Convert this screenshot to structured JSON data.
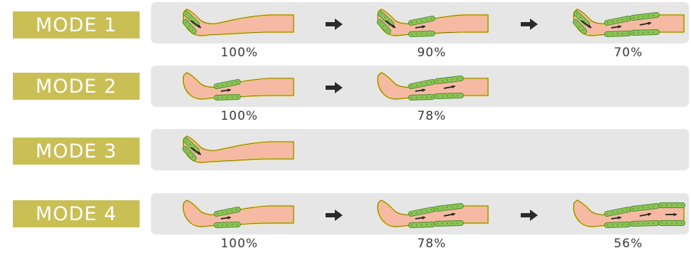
{
  "modes": [
    {
      "label": "MODE  1",
      "steps": [
        {
          "pressure": "100%",
          "active_zones": [
            "foot"
          ]
        },
        {
          "pressure": "90%",
          "active_zones": [
            "foot",
            "calf"
          ]
        },
        {
          "pressure": "70%",
          "active_zones": [
            "foot",
            "calf",
            "thigh"
          ]
        }
      ]
    },
    {
      "label": "MODE  2",
      "steps": [
        {
          "pressure": "100%",
          "active_zones": [
            "calf"
          ]
        },
        {
          "pressure": "78%",
          "active_zones": [
            "calf",
            "thigh"
          ]
        }
      ]
    },
    {
      "label": "MODE  3",
      "steps": [
        {
          "pressure": "",
          "active_zones": [
            "foot"
          ]
        }
      ]
    },
    {
      "label": "MODE  4",
      "steps": [
        {
          "pressure": "100%",
          "active_zones": [
            "calf"
          ]
        },
        {
          "pressure": "78%",
          "active_zones": [
            "calf",
            "thigh"
          ]
        },
        {
          "pressure": "56%",
          "active_zones": [
            "calf",
            "thigh",
            "top"
          ]
        }
      ]
    }
  ],
  "colors": {
    "badge": "#c9bf55",
    "panel": "#e6e6e7",
    "skin": "#f6b9a4",
    "sleeve_outline": "#e8d640",
    "chamber": "#8bc455",
    "chamber_dark": "#4f8a2e",
    "arrow": "#2b2b2b"
  }
}
